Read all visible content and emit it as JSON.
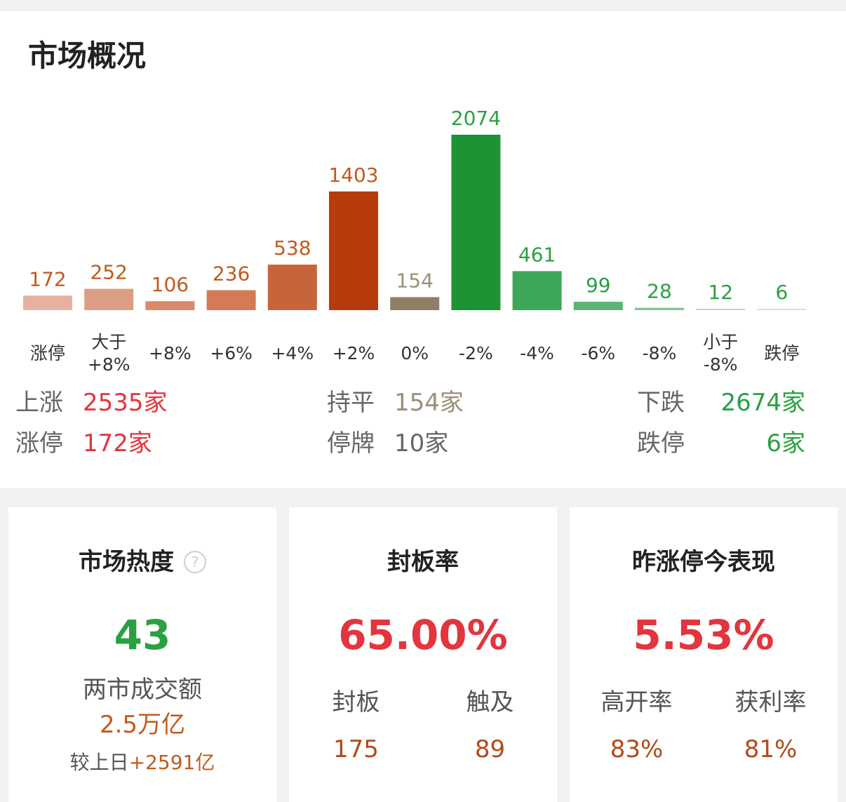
{
  "title": "市场概况",
  "chart_data": {
    "type": "bar",
    "categories": [
      "涨停",
      "大于\n+8%",
      "+8%",
      "+6%",
      "+4%",
      "+2%",
      "0%",
      "-2%",
      "-4%",
      "-6%",
      "-8%",
      "小于\n-8%",
      "跌停"
    ],
    "values": [
      172,
      252,
      106,
      236,
      538,
      1403,
      154,
      2074,
      461,
      99,
      28,
      12,
      6
    ],
    "bar_colors": [
      "#e6b29f",
      "#dd9d85",
      "#d98a6d",
      "#d57a55",
      "#c8643a",
      "#b83b0b",
      "#8f7e68",
      "#1c9436",
      "#3ea659",
      "#5cb373",
      "#82c494",
      "#b5dbbf",
      "#cde8d3"
    ],
    "label_colors": [
      "#c05a1d",
      "#c05a1d",
      "#c05a1d",
      "#c05a1d",
      "#c05a1d",
      "#c05a1d",
      "#9a8f78",
      "#2aa043",
      "#2aa043",
      "#2aa043",
      "#2aa043",
      "#2aa043",
      "#2aa043"
    ],
    "ylim": [
      0,
      2074
    ],
    "grid": false,
    "title": "",
    "xlabel": "",
    "ylabel": ""
  },
  "summary": {
    "up_label": "上涨",
    "up_value": "2535家",
    "limit_up_label": "涨停",
    "limit_up_value": "172家",
    "flat_label": "持平",
    "flat_value": "154家",
    "suspended_label": "停牌",
    "suspended_value": "10家",
    "down_label": "下跌",
    "down_value": "2674家",
    "limit_down_label": "跌停",
    "limit_down_value": "6家"
  },
  "heat_card": {
    "title": "市场热度",
    "help_icon": "?",
    "value": "43",
    "turnover_label": "两市成交额",
    "turnover_value": "2.5万亿",
    "compare_label": "较上日",
    "compare_value": "+2591亿"
  },
  "seal_card": {
    "title": "封板率",
    "value": "65.00%",
    "sealed_label": "封板",
    "sealed_value": "175",
    "touched_label": "触及",
    "touched_value": "89"
  },
  "yesterday_card": {
    "title": "昨涨停今表现",
    "value": "5.53%",
    "high_open_label": "高开率",
    "high_open_value": "83%",
    "profit_label": "获利率",
    "profit_value": "81%"
  }
}
